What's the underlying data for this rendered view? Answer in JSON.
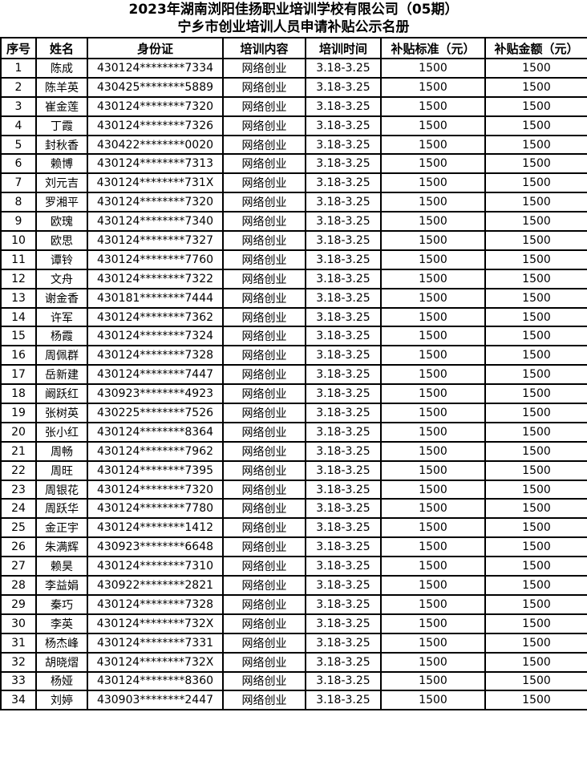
{
  "title": {
    "line1": "2023年湖南浏阳佳扬职业培训学校有限公司（05期）",
    "line2": "宁乡市创业培训人员申请补贴公示名册"
  },
  "colors": {
    "border": "#000000",
    "background": "#ffffff",
    "text": "#000000"
  },
  "table": {
    "column_keys": [
      "index",
      "name",
      "id_number",
      "training_content",
      "training_time",
      "subsidy_standard",
      "subsidy_amount"
    ],
    "headers": [
      "序号",
      "姓名",
      "身份证",
      "培训内容",
      "培训时间",
      "补贴标准（元）",
      "补贴金额（元）"
    ],
    "rows": [
      [
        "1",
        "陈成",
        "430124********7334",
        "网络创业",
        "3.18-3.25",
        "1500",
        "1500"
      ],
      [
        "2",
        "陈羊英",
        "430425********5889",
        "网络创业",
        "3.18-3.25",
        "1500",
        "1500"
      ],
      [
        "3",
        "崔金莲",
        "430124********7320",
        "网络创业",
        "3.18-3.25",
        "1500",
        "1500"
      ],
      [
        "4",
        "丁霞",
        "430124********7326",
        "网络创业",
        "3.18-3.25",
        "1500",
        "1500"
      ],
      [
        "5",
        "封秋香",
        "430422********0020",
        "网络创业",
        "3.18-3.25",
        "1500",
        "1500"
      ],
      [
        "6",
        "赖博",
        "430124********7313",
        "网络创业",
        "3.18-3.25",
        "1500",
        "1500"
      ],
      [
        "7",
        "刘元吉",
        "430124********731X",
        "网络创业",
        "3.18-3.25",
        "1500",
        "1500"
      ],
      [
        "8",
        "罗湘平",
        "430124********7320",
        "网络创业",
        "3.18-3.25",
        "1500",
        "1500"
      ],
      [
        "9",
        "欧瑰",
        "430124********7340",
        "网络创业",
        "3.18-3.25",
        "1500",
        "1500"
      ],
      [
        "10",
        "欧思",
        "430124********7327",
        "网络创业",
        "3.18-3.25",
        "1500",
        "1500"
      ],
      [
        "11",
        "谭铃",
        "430124********7760",
        "网络创业",
        "3.18-3.25",
        "1500",
        "1500"
      ],
      [
        "12",
        "文舟",
        "430124********7322",
        "网络创业",
        "3.18-3.25",
        "1500",
        "1500"
      ],
      [
        "13",
        "谢金香",
        "430181********7444",
        "网络创业",
        "3.18-3.25",
        "1500",
        "1500"
      ],
      [
        "14",
        "许军",
        "430124********7362",
        "网络创业",
        "3.18-3.25",
        "1500",
        "1500"
      ],
      [
        "15",
        "杨霞",
        "430124********7324",
        "网络创业",
        "3.18-3.25",
        "1500",
        "1500"
      ],
      [
        "16",
        "周佩群",
        "430124********7328",
        "网络创业",
        "3.18-3.25",
        "1500",
        "1500"
      ],
      [
        "17",
        "岳新建",
        "430124********7447",
        "网络创业",
        "3.18-3.25",
        "1500",
        "1500"
      ],
      [
        "18",
        "阚跃红",
        "430923********4923",
        "网络创业",
        "3.18-3.25",
        "1500",
        "1500"
      ],
      [
        "19",
        "张树英",
        "430225********7526",
        "网络创业",
        "3.18-3.25",
        "1500",
        "1500"
      ],
      [
        "20",
        "张小红",
        "430124********8364",
        "网络创业",
        "3.18-3.25",
        "1500",
        "1500"
      ],
      [
        "21",
        "周畅",
        "430124********7962",
        "网络创业",
        "3.18-3.25",
        "1500",
        "1500"
      ],
      [
        "22",
        "周旺",
        "430124********7395",
        "网络创业",
        "3.18-3.25",
        "1500",
        "1500"
      ],
      [
        "23",
        "周银花",
        "430124********7320",
        "网络创业",
        "3.18-3.25",
        "1500",
        "1500"
      ],
      [
        "24",
        "周跃华",
        "430124********7780",
        "网络创业",
        "3.18-3.25",
        "1500",
        "1500"
      ],
      [
        "25",
        "金正宇",
        "430124********1412",
        "网络创业",
        "3.18-3.25",
        "1500",
        "1500"
      ],
      [
        "26",
        "朱满辉",
        "430923********6648",
        "网络创业",
        "3.18-3.25",
        "1500",
        "1500"
      ],
      [
        "27",
        "赖昊",
        "430124********7310",
        "网络创业",
        "3.18-3.25",
        "1500",
        "1500"
      ],
      [
        "28",
        "李益娟",
        "430922********2821",
        "网络创业",
        "3.18-3.25",
        "1500",
        "1500"
      ],
      [
        "29",
        "秦巧",
        "430124********7328",
        "网络创业",
        "3.18-3.25",
        "1500",
        "1500"
      ],
      [
        "30",
        "李英",
        "430124********732X",
        "网络创业",
        "3.18-3.25",
        "1500",
        "1500"
      ],
      [
        "31",
        "杨杰峰",
        "430124********7331",
        "网络创业",
        "3.18-3.25",
        "1500",
        "1500"
      ],
      [
        "32",
        "胡晓熠",
        "430124********732X",
        "网络创业",
        "3.18-3.25",
        "1500",
        "1500"
      ],
      [
        "33",
        "杨娅",
        "430124********8360",
        "网络创业",
        "3.18-3.25",
        "1500",
        "1500"
      ],
      [
        "34",
        "刘婷",
        "430903********2447",
        "网络创业",
        "3.18-3.25",
        "1500",
        "1500"
      ]
    ]
  }
}
